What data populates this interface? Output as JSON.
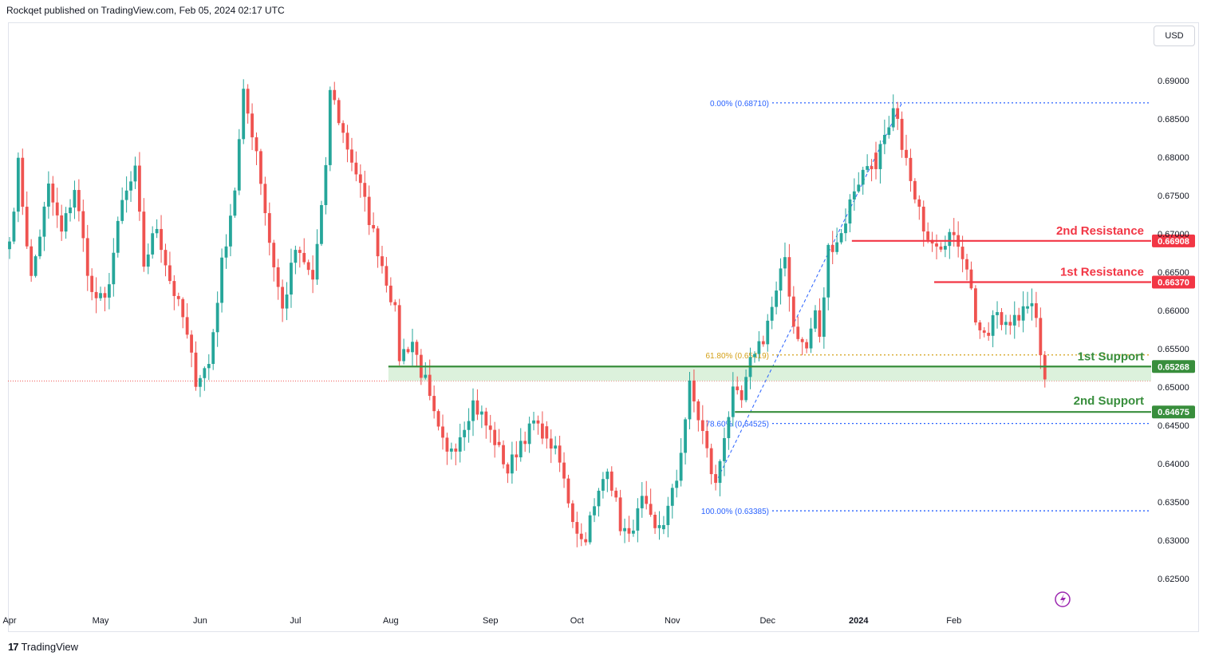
{
  "header": {
    "publish_text": "Rockqet published on TradingView.com, Feb 05, 2024 02:17 UTC"
  },
  "currency_button": "USD",
  "footer": {
    "logo_glyph": "17",
    "brand": "TradingView"
  },
  "colors": {
    "up": "#26a69a",
    "down": "#ef5350",
    "support": "#388e3c",
    "resistance": "#f23645",
    "fib_blue": "#2962ff",
    "fib_gold": "#d4a017",
    "support_zone": "#d8f0d8"
  },
  "chart_data": {
    "type": "candlestick",
    "symbol_currency": "USD",
    "ylim": [
      0.6225,
      0.6925
    ],
    "y_ticks": [
      "0.69000",
      "0.68500",
      "0.68000",
      "0.67500",
      "0.67000",
      "0.66500",
      "0.66000",
      "0.65500",
      "0.65000",
      "0.64500",
      "0.64000",
      "0.63500",
      "0.63000",
      "0.62500"
    ],
    "x_labels": [
      {
        "label": "Apr",
        "index": 0
      },
      {
        "label": "May",
        "index": 21
      },
      {
        "label": "Jun",
        "index": 44
      },
      {
        "label": "Jul",
        "index": 66
      },
      {
        "label": "Aug",
        "index": 88
      },
      {
        "label": "Sep",
        "index": 111
      },
      {
        "label": "Oct",
        "index": 131
      },
      {
        "label": "Nov",
        "index": 153
      },
      {
        "label": "Dec",
        "index": 175
      },
      {
        "label": "2024",
        "index": 196
      },
      {
        "label": "Feb",
        "index": 218
      }
    ],
    "bar_count": 240,
    "waypoints": [
      [
        0,
        0.669,
        "up"
      ],
      [
        2,
        0.679,
        "up"
      ],
      [
        5,
        0.664,
        "down"
      ],
      [
        9,
        0.676,
        "up"
      ],
      [
        12,
        0.67,
        "down"
      ],
      [
        15,
        0.676,
        "up"
      ],
      [
        19,
        0.662,
        "down"
      ],
      [
        22,
        0.661,
        "down"
      ],
      [
        26,
        0.674,
        "up"
      ],
      [
        29,
        0.678,
        "up"
      ],
      [
        31,
        0.666,
        "down"
      ],
      [
        34,
        0.671,
        "up"
      ],
      [
        37,
        0.664,
        "down"
      ],
      [
        40,
        0.659,
        "down"
      ],
      [
        43,
        0.651,
        "down"
      ],
      [
        46,
        0.653,
        "up"
      ],
      [
        49,
        0.666,
        "up"
      ],
      [
        52,
        0.676,
        "up"
      ],
      [
        54,
        0.688,
        "up"
      ],
      [
        57,
        0.681,
        "down"
      ],
      [
        60,
        0.669,
        "down"
      ],
      [
        63,
        0.66,
        "down"
      ],
      [
        66,
        0.668,
        "up"
      ],
      [
        70,
        0.664,
        "down"
      ],
      [
        73,
        0.678,
        "up"
      ],
      [
        74,
        0.689,
        "up"
      ],
      [
        77,
        0.683,
        "down"
      ],
      [
        80,
        0.678,
        "down"
      ],
      [
        83,
        0.672,
        "down"
      ],
      [
        86,
        0.666,
        "down"
      ],
      [
        89,
        0.66,
        "down"
      ],
      [
        90,
        0.654,
        "down"
      ],
      [
        93,
        0.656,
        "up"
      ],
      [
        96,
        0.65,
        "down"
      ],
      [
        99,
        0.644,
        "down"
      ],
      [
        101,
        0.641,
        "down"
      ],
      [
        104,
        0.644,
        "up"
      ],
      [
        107,
        0.648,
        "up"
      ],
      [
        110,
        0.645,
        "down"
      ],
      [
        113,
        0.642,
        "down"
      ],
      [
        115,
        0.639,
        "down"
      ],
      [
        118,
        0.643,
        "up"
      ],
      [
        121,
        0.645,
        "up"
      ],
      [
        124,
        0.644,
        "down"
      ],
      [
        127,
        0.64,
        "down"
      ],
      [
        130,
        0.633,
        "down"
      ],
      [
        132,
        0.63,
        "down"
      ],
      [
        135,
        0.634,
        "up"
      ],
      [
        138,
        0.64,
        "up"
      ],
      [
        141,
        0.632,
        "down"
      ],
      [
        143,
        0.63,
        "down"
      ],
      [
        146,
        0.635,
        "up"
      ],
      [
        149,
        0.631,
        "down"
      ],
      [
        151,
        0.632,
        "up"
      ],
      [
        154,
        0.638,
        "up"
      ],
      [
        157,
        0.65,
        "up"
      ],
      [
        160,
        0.644,
        "down"
      ],
      [
        162,
        0.639,
        "down"
      ],
      [
        163,
        0.637,
        "down"
      ],
      [
        165,
        0.644,
        "up"
      ],
      [
        167,
        0.649,
        "up"
      ],
      [
        169,
        0.648,
        "down"
      ],
      [
        171,
        0.653,
        "up"
      ],
      [
        174,
        0.657,
        "up"
      ],
      [
        177,
        0.662,
        "up"
      ],
      [
        179,
        0.667,
        "up"
      ],
      [
        181,
        0.658,
        "down"
      ],
      [
        184,
        0.655,
        "down"
      ],
      [
        186,
        0.66,
        "up"
      ],
      [
        187,
        0.656,
        "down"
      ],
      [
        189,
        0.668,
        "up"
      ],
      [
        192,
        0.67,
        "up"
      ],
      [
        195,
        0.676,
        "up"
      ],
      [
        198,
        0.679,
        "up"
      ],
      [
        200,
        0.68,
        "down"
      ],
      [
        203,
        0.683,
        "up"
      ],
      [
        204,
        0.686,
        "up"
      ],
      [
        206,
        0.682,
        "down"
      ],
      [
        209,
        0.674,
        "down"
      ],
      [
        212,
        0.67,
        "down"
      ],
      [
        215,
        0.669,
        "down"
      ],
      [
        217,
        0.67,
        "up"
      ],
      [
        219,
        0.669,
        "down"
      ],
      [
        221,
        0.666,
        "down"
      ],
      [
        223,
        0.659,
        "down"
      ],
      [
        225,
        0.656,
        "down"
      ],
      [
        227,
        0.659,
        "up"
      ],
      [
        230,
        0.658,
        "down"
      ],
      [
        232,
        0.66,
        "up"
      ],
      [
        233,
        0.658,
        "down"
      ],
      [
        235,
        0.661,
        "up"
      ],
      [
        237,
        0.659,
        "down"
      ],
      [
        239,
        0.651,
        "down"
      ]
    ],
    "fibonacci": [
      {
        "label": "0.00% (0.68710)",
        "price": 0.6871,
        "color": "#2962ff"
      },
      {
        "label": "61.80% (0.65419)",
        "price": 0.65419,
        "color": "#d4a017"
      },
      {
        "label": "78.60% (0.64525)",
        "price": 0.64525,
        "color": "#2962ff"
      },
      {
        "label": "100.00% (0.63385)",
        "price": 0.63385,
        "color": "#2962ff"
      }
    ],
    "fib_trend": {
      "from": {
        "index": 163,
        "price": 0.6375
      },
      "to": {
        "index": 206,
        "price": 0.6871
      }
    },
    "levels": [
      {
        "name": "2nd Resistance",
        "price": 0.66908,
        "price_label": "0.66908",
        "color": "#f23645",
        "start_index": 195
      },
      {
        "name": "1st Resistance",
        "price": 0.6637,
        "price_label": "0.66370",
        "color": "#f23645",
        "start_index": 214
      },
      {
        "name": "1st Support",
        "price": 0.65268,
        "price_label": "0.65268",
        "color": "#388e3c",
        "start_index": 88
      },
      {
        "name": "2nd Support",
        "price": 0.64675,
        "price_label": "0.64675",
        "color": "#388e3c",
        "start_index": 168
      }
    ],
    "support_zone": {
      "from": 0.6508,
      "to": 0.6527,
      "start_index": 88
    },
    "current_price": 0.6508
  }
}
